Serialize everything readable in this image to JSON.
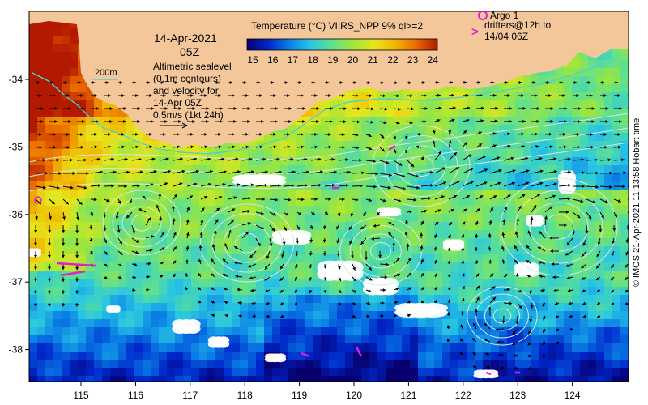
{
  "title": {
    "date": "14-Apr-2021",
    "time": "05Z"
  },
  "description_lines": [
    "Altimetric sealevel",
    "(0.1m contours)",
    "and velocity for",
    "14-Apr 05Z",
    "0.5m/s (1kt 24h)"
  ],
  "isobath_label": "200m",
  "colorbar": {
    "title": "Temperature (°C) VIIRS_NPP 9% ql>=2",
    "ticks": [
      "15",
      "16",
      "17",
      "18",
      "19",
      "20",
      "21",
      "22",
      "23",
      "24"
    ],
    "colors": [
      "#08006e",
      "#0026c9",
      "#0a7fe6",
      "#29c7e3",
      "#5ee08f",
      "#9ee63b",
      "#e6e61e",
      "#f2b500",
      "#ea6a00",
      "#b31800"
    ]
  },
  "legend": {
    "argo_symbol": "o",
    "argo_label": "Argo 1",
    "drifter_symbol": ">",
    "drifter_label_line1": "drifters@12h to",
    "drifter_label_line2": "14/04 06Z",
    "argo_color": "#e020d0",
    "drifter_color": "#e020d0"
  },
  "axes": {
    "x_ticks": [
      "115",
      "116",
      "117",
      "118",
      "119",
      "120",
      "121",
      "122",
      "123",
      "124"
    ],
    "y_ticks": [
      "-34",
      "-35",
      "-36",
      "-37",
      "-38"
    ]
  },
  "credit": "© IMOS 21-Apr-2021 11:13:58 Hobart time",
  "colors": {
    "land": "#f4c79b",
    "cloud": "#ffffff",
    "arrow": "#000000",
    "contour": "#d8e8e0",
    "isobath": "#4fd0d0"
  }
}
